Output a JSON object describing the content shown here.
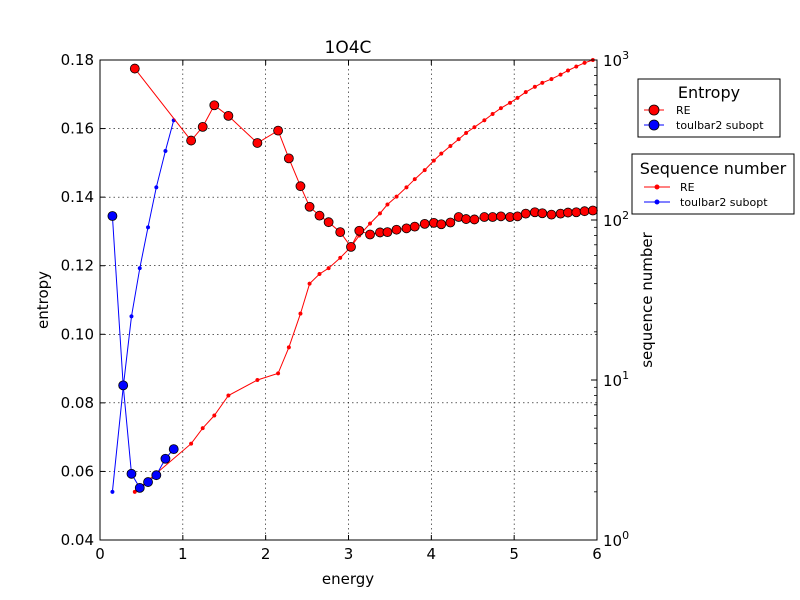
{
  "chart_data": {
    "type": "line",
    "title": "1O4C",
    "xlabel": "energy",
    "ylabel": "entropy",
    "y2label": "sequence number",
    "xlim": [
      0,
      6
    ],
    "ylim": [
      0.04,
      0.18
    ],
    "y2lim": [
      1,
      1000
    ],
    "y2scale": "log",
    "grid": true,
    "x_ticks": [
      "0",
      "1",
      "2",
      "3",
      "4",
      "5",
      "6"
    ],
    "y_ticks": [
      "0.04",
      "0.06",
      "0.08",
      "0.10",
      "0.12",
      "0.14",
      "0.16",
      "0.18"
    ],
    "y2_ticks": [
      {
        "base": "10",
        "exp": "0"
      },
      {
        "base": "10",
        "exp": "1"
      },
      {
        "base": "10",
        "exp": "2"
      },
      {
        "base": "10",
        "exp": "3"
      }
    ],
    "legends": [
      {
        "title": "Entropy",
        "placement": "right-top",
        "entries": [
          {
            "label": "RE",
            "color": "#ff0000",
            "marker": "large"
          },
          {
            "label": "toulbar2 subopt",
            "color": "#0000ff",
            "marker": "large"
          }
        ]
      },
      {
        "title": "Sequence number",
        "placement": "right-middle",
        "entries": [
          {
            "label": "RE",
            "color": "#ff0000",
            "marker": "small"
          },
          {
            "label": "toulbar2 subopt",
            "color": "#0000ff",
            "marker": "small"
          }
        ]
      }
    ],
    "series": [
      {
        "name": "RE",
        "axis": "left",
        "color": "#ff0000",
        "marker": "large",
        "x": [
          0.42,
          1.1,
          1.24,
          1.38,
          1.55,
          1.9,
          2.15,
          2.28,
          2.42,
          2.53,
          2.65,
          2.76,
          2.9,
          3.03,
          3.13,
          3.26,
          3.38,
          3.47,
          3.58,
          3.7,
          3.8,
          3.92,
          4.03,
          4.12,
          4.23,
          4.33,
          4.42,
          4.52,
          4.64,
          4.74,
          4.84,
          4.95,
          5.04,
          5.14,
          5.25,
          5.34,
          5.45,
          5.56,
          5.65,
          5.75,
          5.85,
          5.95
        ],
        "y": [
          0.1775,
          0.1565,
          0.1605,
          0.1668,
          0.1637,
          0.1558,
          0.1594,
          0.1513,
          0.1432,
          0.1372,
          0.1346,
          0.1327,
          0.1298,
          0.1255,
          0.1302,
          0.1291,
          0.1297,
          0.1298,
          0.1305,
          0.1309,
          0.1314,
          0.1322,
          0.1325,
          0.1321,
          0.1326,
          0.1342,
          0.1336,
          0.1335,
          0.1342,
          0.1342,
          0.1344,
          0.1342,
          0.1344,
          0.1352,
          0.1356,
          0.1353,
          0.1349,
          0.1352,
          0.1355,
          0.1356,
          0.1359,
          0.1361
        ]
      },
      {
        "name": "toulbar2 subopt",
        "axis": "left",
        "color": "#0000ff",
        "marker": "large",
        "x": [
          0.15,
          0.28,
          0.38,
          0.48,
          0.58,
          0.68,
          0.79,
          0.89
        ],
        "y": [
          0.1345,
          0.0851,
          0.0593,
          0.0552,
          0.0569,
          0.0589,
          0.0637,
          0.0665
        ]
      },
      {
        "name": "RE",
        "axis": "right",
        "color": "#ff0000",
        "marker": "small",
        "x": [
          0.42,
          1.1,
          1.24,
          1.38,
          1.55,
          1.9,
          2.15,
          2.28,
          2.42,
          2.53,
          2.65,
          2.76,
          2.9,
          3.03,
          3.13,
          3.26,
          3.38,
          3.47,
          3.58,
          3.7,
          3.8,
          3.92,
          4.03,
          4.12,
          4.23,
          4.33,
          4.42,
          4.52,
          4.64,
          4.74,
          4.84,
          4.95,
          5.04,
          5.14,
          5.25,
          5.34,
          5.45,
          5.56,
          5.65,
          5.75,
          5.85,
          5.95
        ],
        "y": [
          2,
          4,
          5,
          6,
          8,
          10,
          11,
          16,
          26,
          40,
          46,
          50,
          58,
          68,
          80,
          95,
          110,
          125,
          140,
          160,
          180,
          205,
          235,
          260,
          290,
          320,
          350,
          380,
          420,
          460,
          500,
          540,
          580,
          630,
          680,
          720,
          760,
          810,
          860,
          910,
          960,
          1000
        ]
      },
      {
        "name": "toulbar2 subopt",
        "axis": "right",
        "color": "#0000ff",
        "marker": "small",
        "x": [
          0.15,
          0.28,
          0.38,
          0.48,
          0.58,
          0.68,
          0.79,
          0.89
        ],
        "y": [
          2,
          9,
          25,
          50,
          90,
          160,
          270,
          420
        ]
      }
    ]
  }
}
